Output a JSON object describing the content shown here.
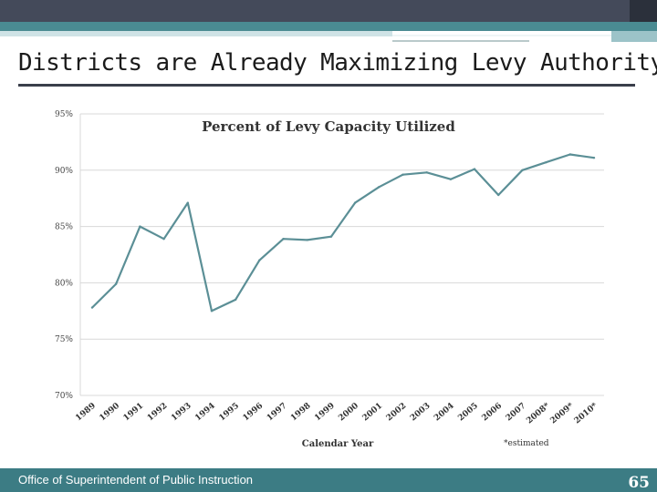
{
  "slide": {
    "title": "Districts are Already Maximizing Levy Authority",
    "footer": "Office of Superintendent of Public Instruction",
    "page_number": "65"
  },
  "colors": {
    "line": "#5b8f96",
    "grid": "#d8d8d8",
    "footer_bar": "#3c7c84"
  },
  "chart_data": {
    "type": "line",
    "title": "Percent of Levy Capacity Utilized",
    "xlabel": "Calendar Year",
    "ylabel": "",
    "note": "*estimated",
    "y_ticks": [
      "95%",
      "90%",
      "85%",
      "80%",
      "75%",
      "70%"
    ],
    "ylim": [
      70,
      95
    ],
    "grid": true,
    "categories": [
      "1989",
      "1990",
      "1991",
      "1992",
      "1993",
      "1994",
      "1995",
      "1996",
      "1997",
      "1998",
      "1999",
      "2000",
      "2001",
      "2002",
      "2003",
      "2004",
      "2005",
      "2006",
      "2007",
      "2008*",
      "2009*",
      "2010*"
    ],
    "series": [
      {
        "values": [
          77.8,
          79.9,
          85.0,
          83.9,
          87.1,
          77.5,
          78.5,
          82.0,
          83.9,
          83.8,
          84.1,
          87.1,
          88.5,
          89.6,
          89.8,
          89.2,
          90.1,
          87.8,
          90.0,
          90.7,
          91.4,
          91.1
        ]
      }
    ]
  }
}
